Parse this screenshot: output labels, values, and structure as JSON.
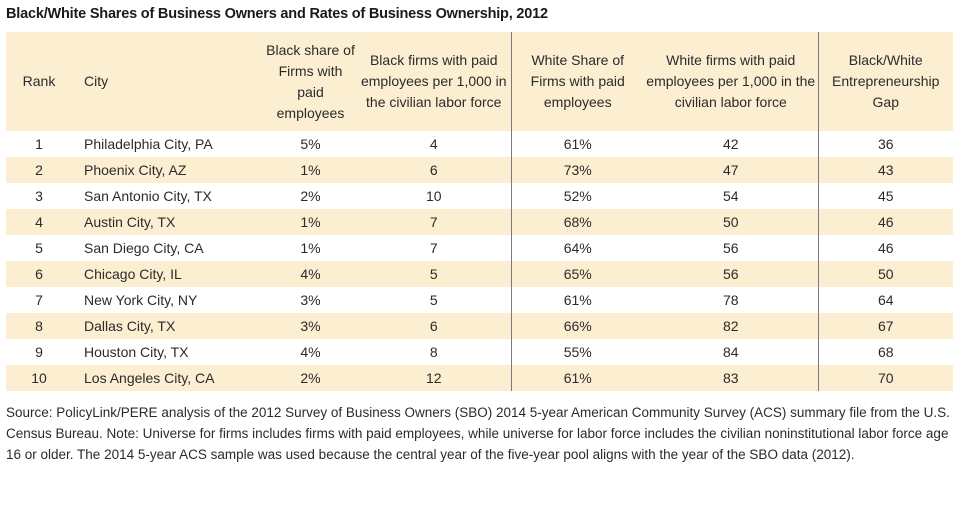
{
  "title": "Black/White Shares of Business Owners and Rates of Business Ownership, 2012",
  "headers": {
    "rank": "Rank",
    "city": "City",
    "black_share": "Black share of Firms with paid employees",
    "black_firms": "Black firms with paid employees per 1,000 in the civilian labor force",
    "white_share": "White Share of Firms with paid employees",
    "white_firms": "White firms with paid employees per 1,000 in the civilian labor force",
    "gap": "Black/White Entrepreneurship Gap"
  },
  "rows": [
    {
      "rank": "1",
      "city": "Philadelphia City, PA",
      "black_share": "5%",
      "black_firms": "4",
      "white_share": "61%",
      "white_firms": "42",
      "gap": "36"
    },
    {
      "rank": "2",
      "city": "Phoenix City, AZ",
      "black_share": "1%",
      "black_firms": "6",
      "white_share": "73%",
      "white_firms": "47",
      "gap": "43"
    },
    {
      "rank": "3",
      "city": "San Antonio City, TX",
      "black_share": "2%",
      "black_firms": "10",
      "white_share": "52%",
      "white_firms": "54",
      "gap": "45"
    },
    {
      "rank": "4",
      "city": "Austin City, TX",
      "black_share": "1%",
      "black_firms": "7",
      "white_share": "68%",
      "white_firms": "50",
      "gap": "46"
    },
    {
      "rank": "5",
      "city": "San Diego City, CA",
      "black_share": "1%",
      "black_firms": "7",
      "white_share": "64%",
      "white_firms": "56",
      "gap": "46"
    },
    {
      "rank": "6",
      "city": "Chicago City, IL",
      "black_share": "4%",
      "black_firms": "5",
      "white_share": "65%",
      "white_firms": "56",
      "gap": "50"
    },
    {
      "rank": "7",
      "city": "New York City, NY",
      "black_share": "3%",
      "black_firms": "5",
      "white_share": "61%",
      "white_firms": "78",
      "gap": "64"
    },
    {
      "rank": "8",
      "city": "Dallas City, TX",
      "black_share": "3%",
      "black_firms": "6",
      "white_share": "66%",
      "white_firms": "82",
      "gap": "67"
    },
    {
      "rank": "9",
      "city": "Houston City, TX",
      "black_share": "4%",
      "black_firms": "8",
      "white_share": "55%",
      "white_firms": "84",
      "gap": "68"
    },
    {
      "rank": "10",
      "city": "Los Angeles City, CA",
      "black_share": "2%",
      "black_firms": "12",
      "white_share": "61%",
      "white_firms": "83",
      "gap": "70"
    }
  ],
  "source": "Source: PolicyLink/PERE analysis of the 2012 Survey of Business Owners (SBO) 2014 5-year American Community Survey (ACS) summary file from the U.S. Census Bureau. Note: Universe for firms includes firms with paid employees, while universe for labor force includes the civilian noninstitutional labor force age 16 or older. The 2014 5-year ACS sample was used because the central year of the five-year pool aligns with the year of the SBO data (2012).",
  "colors": {
    "band": "#fbeed1",
    "separator": "#7a7a7a"
  }
}
